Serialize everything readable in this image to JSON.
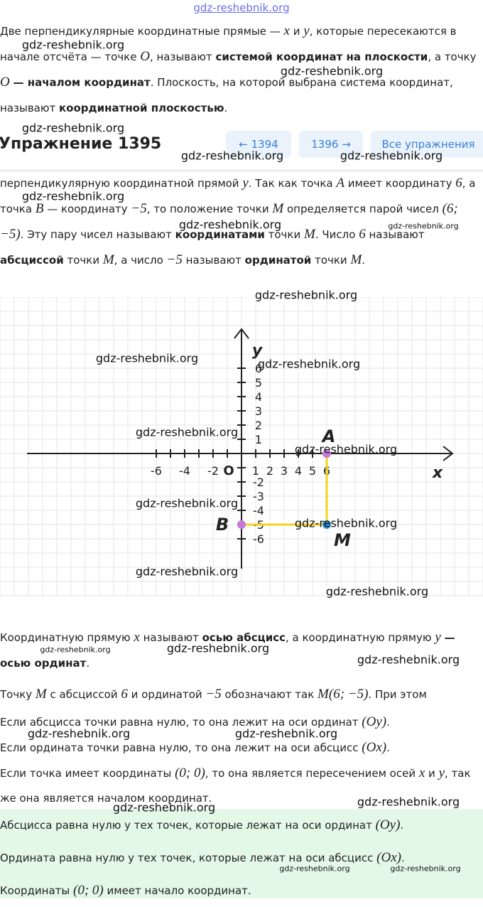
{
  "header_link": "gdz-reshebnik.org",
  "watermark": "gdz-reshebnik.org",
  "intro": [
    {
      "text": "Две перпендикулярные координатные прямые — "
    },
    {
      "math": "x"
    },
    {
      "text": " и "
    },
    {
      "math": "y"
    },
    {
      "text": ", которые пересекаются в начале отсчёта — точке "
    },
    {
      "math": "O"
    },
    {
      "text": ", называют "
    },
    {
      "bold": "системой координат на плоскости"
    },
    {
      "text": ", а точку "
    },
    {
      "math": "O"
    },
    {
      "text": " "
    },
    {
      "bold": "— началом координат"
    },
    {
      "text": ". Плоскость, на которой выбрана система координат, называют "
    },
    {
      "bold": "координатной плоскостью"
    },
    {
      "text": "."
    }
  ],
  "exercise": {
    "title": "Упражнение 1395",
    "prev": "1394",
    "next": "1396",
    "all": "Все упражнения"
  },
  "explanation": [
    {
      "text": "перпендикулярную координатной прямой "
    },
    {
      "math": "y"
    },
    {
      "text": ". Так как точка "
    },
    {
      "math": "A"
    },
    {
      "text": " имеет координату "
    },
    {
      "math": "6"
    },
    {
      "text": ", а точка "
    },
    {
      "math": "B"
    },
    {
      "text": " — координату "
    },
    {
      "math": "−5"
    },
    {
      "text": ", то положение точки "
    },
    {
      "math": "M"
    },
    {
      "text": " определяется парой чисел "
    },
    {
      "math": "(6; −5)"
    },
    {
      "text": ". Эту пару чисел называют "
    },
    {
      "bold": "координатами"
    },
    {
      "text": " точки "
    },
    {
      "math": "M"
    },
    {
      "text": ". Число "
    },
    {
      "math": "6"
    },
    {
      "text": " называют "
    },
    {
      "bold": "абсциссой"
    },
    {
      "text": " точки "
    },
    {
      "math": "M"
    },
    {
      "text": ", а число "
    },
    {
      "math": "−5"
    },
    {
      "text": " называют "
    },
    {
      "bold": "ординатой"
    },
    {
      "text": " точки "
    },
    {
      "math": "M"
    },
    {
      "text": "."
    }
  ],
  "figure": {
    "x_label": "x",
    "y_label": "y",
    "origin": "O",
    "range": [
      -6,
      6
    ],
    "x_ticks": [
      -6,
      -4,
      -2,
      1,
      2,
      3,
      4,
      5,
      6
    ],
    "y_ticks": [
      6,
      5,
      4,
      3,
      2,
      1,
      -2,
      -3,
      -4,
      -5,
      -6
    ],
    "points": [
      {
        "name": "A",
        "x": 6,
        "y": 0,
        "color": "#c57ad8"
      },
      {
        "name": "B",
        "x": 0,
        "y": -5,
        "color": "#c57ad8"
      },
      {
        "name": "M",
        "x": 6,
        "y": -5,
        "color": "#2b8fd6"
      }
    ]
  },
  "axes_text": [
    {
      "text": "Координатную прямую "
    },
    {
      "math": "x"
    },
    {
      "text": " называют "
    },
    {
      "bold": "осью абсцисс"
    },
    {
      "text": ", а координатную прямую "
    },
    {
      "math": "y"
    },
    {
      "text": " "
    },
    {
      "bold": "— осью ординат"
    },
    {
      "text": "."
    }
  ],
  "notation": [
    {
      "text": "Точку "
    },
    {
      "math": "M"
    },
    {
      "text": " с абсциссой "
    },
    {
      "math": "6"
    },
    {
      "text": " и ординатой "
    },
    {
      "math": "−5"
    },
    {
      "text": " обозначают так "
    },
    {
      "math": "M(6; −5)"
    },
    {
      "text": ". При этом"
    }
  ],
  "rules": [
    [
      {
        "text": "Если абсцисса точки равна нулю, то она лежит на оси ординат "
      },
      {
        "math": "(Oy)"
      },
      {
        "text": "."
      }
    ],
    [
      {
        "text": "Если ордината точки равна нулю, то она лежит на оси абсцисс "
      },
      {
        "math": "(Ox)"
      },
      {
        "text": "."
      }
    ],
    [
      {
        "text": "Если точка имеет координаты "
      },
      {
        "math": "(0; 0)"
      },
      {
        "text": ", то она является пересечением осей "
      },
      {
        "math": "x"
      },
      {
        "text": " и "
      },
      {
        "math": "y"
      },
      {
        "text": ", так же она является началом координат."
      }
    ]
  ],
  "notes": [
    [
      {
        "text": "Абсцисса равна нулю у тех точек, которые лежат на оси ординат "
      },
      {
        "math": "(Oy)"
      },
      {
        "text": "."
      }
    ],
    [
      {
        "text": "Ордината равна нулю у тех точек, которые лежат на оси абсцисс "
      },
      {
        "math": "(Ox)"
      },
      {
        "text": "."
      }
    ],
    [
      {
        "text": "Координаты "
      },
      {
        "math": "(0; 0)"
      },
      {
        "text": " имеет начало координат."
      }
    ]
  ]
}
